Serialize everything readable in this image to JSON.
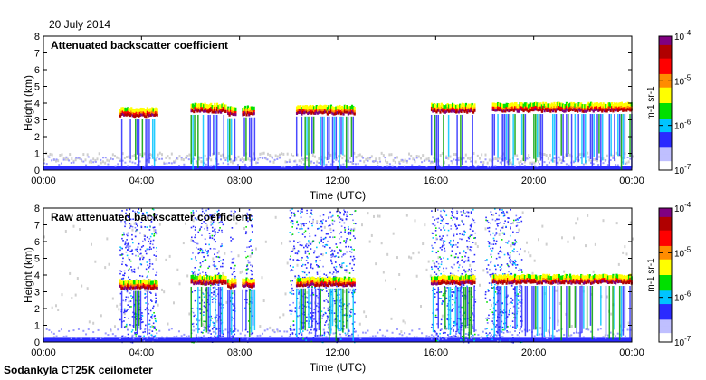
{
  "date": "20 July 2014",
  "instrument": "Sodankyla CT25K ceilometer",
  "colors": {
    "background_noise": "#cfcfcf",
    "colormap": [
      "#ffffff",
      "#bfbfff",
      "#2a2aff",
      "#00c4ff",
      "#00e000",
      "#ffff00",
      "#ff8c00",
      "#ff0000",
      "#b00000",
      "#800080"
    ]
  },
  "chart_data": [
    {
      "type": "heatmap",
      "title": "Attenuated backscatter coefficient",
      "xlabel": "Time (UTC)",
      "ylabel": "Height (km)",
      "xticks": [
        "00:00",
        "04:00",
        "08:00",
        "12:00",
        "16:00",
        "20:00",
        "00:00"
      ],
      "xlim": [
        0,
        24
      ],
      "ylim": [
        0,
        8
      ],
      "yticks": [
        0,
        1,
        2,
        3,
        4,
        5,
        6,
        7,
        8
      ],
      "grid": false,
      "colorbar": {
        "scale": "log",
        "range": [
          1e-07,
          0.0001
        ],
        "ticks": [
          "10-7",
          "10-6",
          "10-5",
          "10-4"
        ],
        "unit": "m-1 sr-1"
      },
      "cloud_layers": [
        {
          "start": 3.1,
          "end": 4.6,
          "height": 3.35
        },
        {
          "start": 6.0,
          "end": 7.4,
          "height": 3.6
        },
        {
          "start": 7.5,
          "end": 7.8,
          "height": 3.4
        },
        {
          "start": 8.1,
          "end": 8.6,
          "height": 3.45
        },
        {
          "start": 10.3,
          "end": 12.7,
          "height": 3.5
        },
        {
          "start": 15.8,
          "end": 17.6,
          "height": 3.6
        },
        {
          "start": 18.3,
          "end": 24.0,
          "height": 3.65
        }
      ]
    },
    {
      "type": "heatmap",
      "title": "Raw attenuated backscatter coefficient",
      "xlabel": "Time (UTC)",
      "ylabel": "Height (km)",
      "xticks": [
        "00:00",
        "04:00",
        "08:00",
        "12:00",
        "16:00",
        "20:00",
        "00:00"
      ],
      "xlim": [
        0,
        24
      ],
      "ylim": [
        0,
        8
      ],
      "yticks": [
        0,
        1,
        2,
        3,
        4,
        5,
        6,
        7,
        8
      ],
      "grid": false,
      "colorbar": {
        "scale": "log",
        "range": [
          1e-07,
          0.0001
        ],
        "ticks": [
          "10-7",
          "10-6",
          "10-5",
          "10-4"
        ],
        "unit": "m-1 sr-1"
      },
      "cloud_layers": [
        {
          "start": 3.1,
          "end": 4.6,
          "height": 3.35
        },
        {
          "start": 6.0,
          "end": 7.4,
          "height": 3.6
        },
        {
          "start": 7.5,
          "end": 7.8,
          "height": 3.4
        },
        {
          "start": 8.1,
          "end": 8.6,
          "height": 3.45
        },
        {
          "start": 10.3,
          "end": 12.7,
          "height": 3.5
        },
        {
          "start": 15.8,
          "end": 17.6,
          "height": 3.6
        },
        {
          "start": 18.3,
          "end": 24.0,
          "height": 3.65
        }
      ],
      "noisy_columns": [
        {
          "start": 3.1,
          "end": 4.6
        },
        {
          "start": 6.0,
          "end": 7.3
        },
        {
          "start": 7.6,
          "end": 7.8
        },
        {
          "start": 8.2,
          "end": 8.5
        },
        {
          "start": 10.0,
          "end": 12.7
        },
        {
          "start": 15.8,
          "end": 17.6
        },
        {
          "start": 18.0,
          "end": 19.5
        }
      ]
    }
  ]
}
